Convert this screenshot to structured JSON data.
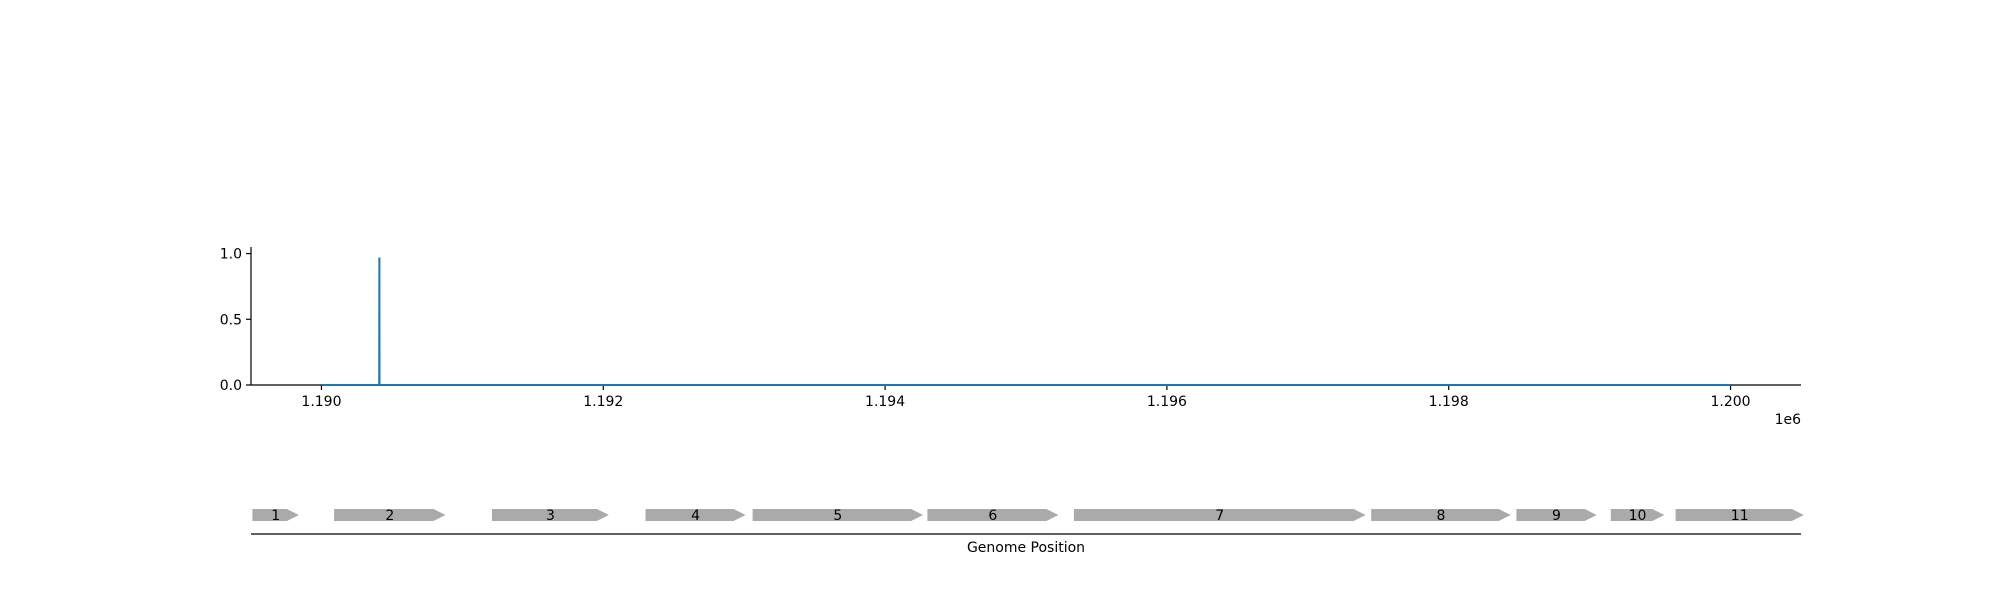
{
  "chart_data": [
    {
      "type": "line",
      "x": [
        1190000,
        1190410,
        1190411,
        1190412,
        1200000
      ],
      "series": [
        {
          "values": [
            0.0,
            0.0,
            0.97,
            0.0,
            0.0
          ],
          "color": "#1f77b4"
        }
      ],
      "xlim": [
        1189500,
        1200500
      ],
      "ylim": [
        0.0,
        1.05
      ],
      "x_ticks": [
        1190000,
        1192000,
        1194000,
        1196000,
        1198000,
        1200000
      ],
      "x_tick_labels": [
        "1.190",
        "1.192",
        "1.194",
        "1.196",
        "1.198",
        "1.200"
      ],
      "y_ticks": [
        0.0,
        0.5,
        1.0
      ],
      "y_tick_labels": [
        "0.0",
        "0.5",
        "1.0"
      ],
      "x_offset_label": "1e6",
      "grid": false,
      "spines": "left and bottom only"
    },
    {
      "type": "gene-track",
      "xlabel": "Genome Position",
      "xlim": [
        1189500,
        1200500
      ],
      "arrow_color": "#aaaaaa",
      "genes": [
        {
          "label": "1",
          "start": 1189510,
          "end": 1189840,
          "strand": "+"
        },
        {
          "label": "2",
          "start": 1190090,
          "end": 1190880,
          "strand": "+"
        },
        {
          "label": "3",
          "start": 1191210,
          "end": 1192040,
          "strand": "+"
        },
        {
          "label": "4",
          "start": 1192300,
          "end": 1193010,
          "strand": "+"
        },
        {
          "label": "5",
          "start": 1193060,
          "end": 1194270,
          "strand": "+"
        },
        {
          "label": "6",
          "start": 1194300,
          "end": 1195230,
          "strand": "+"
        },
        {
          "label": "7",
          "start": 1195340,
          "end": 1197410,
          "strand": "+"
        },
        {
          "label": "8",
          "start": 1197450,
          "end": 1198440,
          "strand": "+"
        },
        {
          "label": "9",
          "start": 1198480,
          "end": 1199050,
          "strand": "+"
        },
        {
          "label": "10",
          "start": 1199150,
          "end": 1199530,
          "strand": "+"
        },
        {
          "label": "11",
          "start": 1199610,
          "end": 1200520,
          "strand": "+"
        }
      ]
    }
  ]
}
